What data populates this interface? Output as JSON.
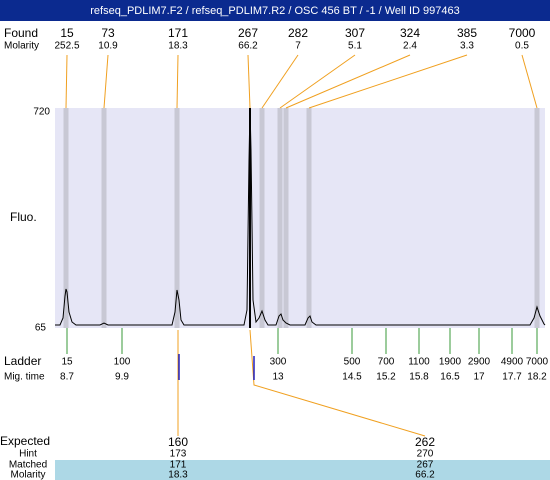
{
  "header": {
    "title": "refseq_PDLIM7.F2 / refseq_PDLIM7.R2 / OSC 456 BT / -1 / Well ID 997463"
  },
  "found": {
    "label": "Found",
    "molarity_label": "Molarity",
    "peaks": [
      {
        "size": "15",
        "molarity": "252.5"
      },
      {
        "size": "73",
        "molarity": "10.9"
      },
      {
        "size": "171",
        "molarity": "18.3"
      },
      {
        "size": "267",
        "molarity": "66.2"
      },
      {
        "size": "282",
        "molarity": "7"
      },
      {
        "size": "307",
        "molarity": "5.1"
      },
      {
        "size": "324",
        "molarity": "2.4"
      },
      {
        "size": "385",
        "molarity": "3.3"
      },
      {
        "size": "7000",
        "molarity": "0.5"
      }
    ]
  },
  "plot": {
    "y_top": "720",
    "y_bottom": "65",
    "y_label": "Fluo."
  },
  "ladder": {
    "label": "Ladder",
    "time_label": "Mig. time",
    "bands": [
      {
        "size": "15",
        "time": "8.7"
      },
      {
        "size": "100",
        "time": "9.9"
      },
      {
        "size": "300",
        "time": "13"
      },
      {
        "size": "500",
        "time": "14.5"
      },
      {
        "size": "700",
        "time": "15.2"
      },
      {
        "size": "1100",
        "time": "15.8"
      },
      {
        "size": "1900",
        "time": "16.5"
      },
      {
        "size": "2900",
        "time": "17"
      },
      {
        "size": "4900",
        "time": "17.7"
      },
      {
        "size": "7000",
        "time": "18.2"
      }
    ]
  },
  "expected": {
    "label": "Expected",
    "hint_label": "Hint",
    "matched_label": "Matched",
    "molarity_label": "Molarity",
    "items": [
      {
        "size": "160",
        "hint": "173",
        "matched": "171",
        "molarity": "18.3"
      },
      {
        "size": "262",
        "hint": "270",
        "matched": "267",
        "molarity": "66.2"
      }
    ]
  }
}
